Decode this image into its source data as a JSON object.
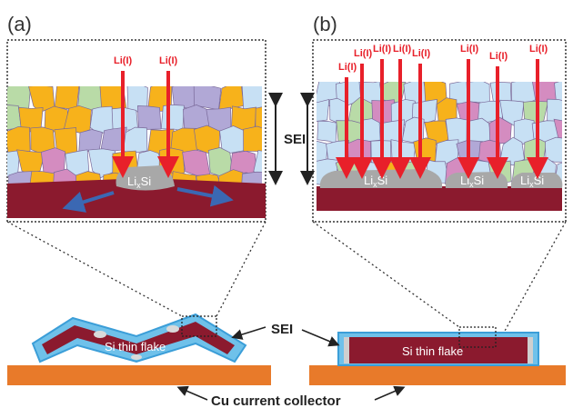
{
  "panels": {
    "a": "(a)",
    "b": "(b)"
  },
  "lithium_label": "Li(I)",
  "alloy": {
    "base": "Li",
    "sub": "x",
    "tail": "Si"
  },
  "sei_label": "SEI",
  "flake_label": "Si thin flake",
  "collector_label": "Cu current collector",
  "colors": {
    "arrow": "#e8202a",
    "substrate": "#8b1a2e",
    "collector": "#e87a2a",
    "sei_shell": "#6fc1ea",
    "lixsi": "#a8a8a8",
    "grain_orange": "#f7b21b",
    "grain_purple": "#b1a8d6",
    "grain_blue": "#c7e0f4",
    "grain_green": "#b9dba7",
    "grain_pink": "#d48cc0",
    "strain_arrow": "#3b68b3"
  }
}
